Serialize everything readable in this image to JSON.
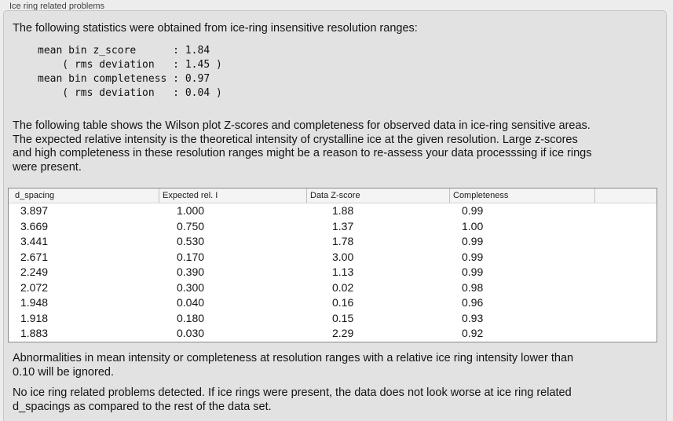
{
  "panel": {
    "title": "Ice ring related problems"
  },
  "intro_text": "The following statistics were obtained from ice-ring insensitive resolution ranges:",
  "stats_block": "mean bin z_score      : 1.84\n    ( rms deviation   : 1.45 )\nmean bin completeness : 0.97\n    ( rms deviation   : 0.04 )",
  "table_description": "The following table shows the Wilson plot Z-scores and completeness for observed data in ice-ring sensitive areas.\nThe expected relative intensity is the theoretical intensity of crystalline ice at the given resolution. Large z-scores\nand high completeness in these resolution ranges might be a reason to re-assess your data processsing if ice rings\nwere present.",
  "table": {
    "headers": [
      "d_spacing",
      "Expected rel. I",
      "Data Z-score",
      "Completeness",
      ""
    ],
    "rows": [
      [
        "3.897",
        "1.000",
        "1.88",
        "0.99"
      ],
      [
        "3.669",
        "0.750",
        "1.37",
        "1.00"
      ],
      [
        "3.441",
        "0.530",
        "1.78",
        "0.99"
      ],
      [
        "2.671",
        "0.170",
        "3.00",
        "0.99"
      ],
      [
        "2.249",
        "0.390",
        "1.13",
        "0.99"
      ],
      [
        "2.072",
        "0.300",
        "0.02",
        "0.98"
      ],
      [
        "1.948",
        "0.040",
        "0.16",
        "0.96"
      ],
      [
        "1.918",
        "0.180",
        "0.15",
        "0.93"
      ],
      [
        "1.883",
        "0.030",
        "2.29",
        "0.92"
      ]
    ]
  },
  "ignore_note": "Abnormalities in mean intensity or completeness at resolution ranges with a relative ice ring intensity lower than\n0.10 will be ignored.",
  "conclusion": "No ice ring related problems detected. If ice rings were present, the data does not look worse at ice ring related\nd_spacings as compared to the rest of the data set."
}
